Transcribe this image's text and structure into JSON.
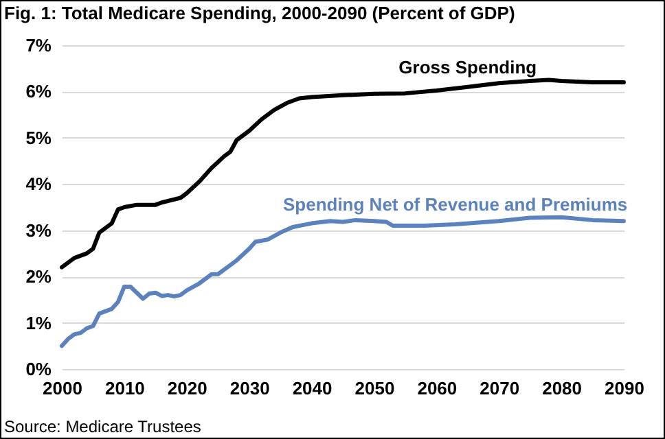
{
  "chart_data": {
    "type": "line",
    "title": "Fig. 1: Total Medicare Spending, 2000-2090 (Percent of GDP)",
    "annotations": [
      "Source: Medicare Trustees"
    ],
    "xlim": [
      2000,
      2090
    ],
    "xticks": [
      2000,
      2010,
      2020,
      2030,
      2040,
      2050,
      2060,
      2070,
      2080,
      2090
    ],
    "ylim": [
      0,
      7
    ],
    "yticks": [
      {
        "value": 0,
        "label": "0%"
      },
      {
        "value": 1,
        "label": "1%"
      },
      {
        "value": 2,
        "label": "2%"
      },
      {
        "value": 3,
        "label": "3%"
      },
      {
        "value": 4,
        "label": "4%"
      },
      {
        "value": 5,
        "label": "5%"
      },
      {
        "value": 6,
        "label": "6%"
      },
      {
        "value": 7,
        "label": "7%"
      }
    ],
    "grid": "y",
    "legend": false,
    "marker": "none",
    "line_style": "solid",
    "series": [
      {
        "name": "Gross Spending",
        "color": "#000000",
        "x": [
          2000,
          2001,
          2002,
          2004,
          2005,
          2006,
          2007,
          2008,
          2009,
          2010,
          2012,
          2015,
          2016,
          2019,
          2020,
          2022,
          2024,
          2026,
          2027,
          2028,
          2030,
          2032,
          2034,
          2036,
          2038,
          2040,
          2045,
          2050,
          2055,
          2060,
          2065,
          2070,
          2075,
          2078,
          2080,
          2085,
          2090
        ],
        "values": [
          2.2,
          2.3,
          2.4,
          2.5,
          2.6,
          2.95,
          3.05,
          3.15,
          3.45,
          3.5,
          3.55,
          3.55,
          3.6,
          3.7,
          3.8,
          4.05,
          4.35,
          4.6,
          4.7,
          4.95,
          5.15,
          5.4,
          5.6,
          5.75,
          5.85,
          5.88,
          5.92,
          5.95,
          5.96,
          6.02,
          6.1,
          6.18,
          6.23,
          6.25,
          6.23,
          6.2,
          6.2
        ]
      },
      {
        "name": "Spending Net of Revenue and Premiums",
        "color": "#5b82bd",
        "x": [
          2000,
          2001,
          2002,
          2003,
          2004,
          2005,
          2006,
          2008,
          2009,
          2010,
          2011,
          2012,
          2013,
          2014,
          2015,
          2016,
          2017,
          2018,
          2019,
          2020,
          2022,
          2024,
          2025,
          2027,
          2028,
          2030,
          2031,
          2033,
          2035,
          2037,
          2040,
          2043,
          2045,
          2047,
          2050,
          2052,
          2053,
          2058,
          2063,
          2070,
          2075,
          2080,
          2085,
          2090
        ],
        "values": [
          0.5,
          0.65,
          0.75,
          0.78,
          0.88,
          0.93,
          1.2,
          1.3,
          1.45,
          1.78,
          1.78,
          1.65,
          1.52,
          1.63,
          1.65,
          1.58,
          1.6,
          1.57,
          1.6,
          1.7,
          1.85,
          2.05,
          2.05,
          2.25,
          2.35,
          2.6,
          2.75,
          2.8,
          2.95,
          3.07,
          3.15,
          3.2,
          3.18,
          3.22,
          3.2,
          3.18,
          3.1,
          3.1,
          3.13,
          3.2,
          3.27,
          3.28,
          3.22,
          3.2
        ]
      }
    ]
  }
}
